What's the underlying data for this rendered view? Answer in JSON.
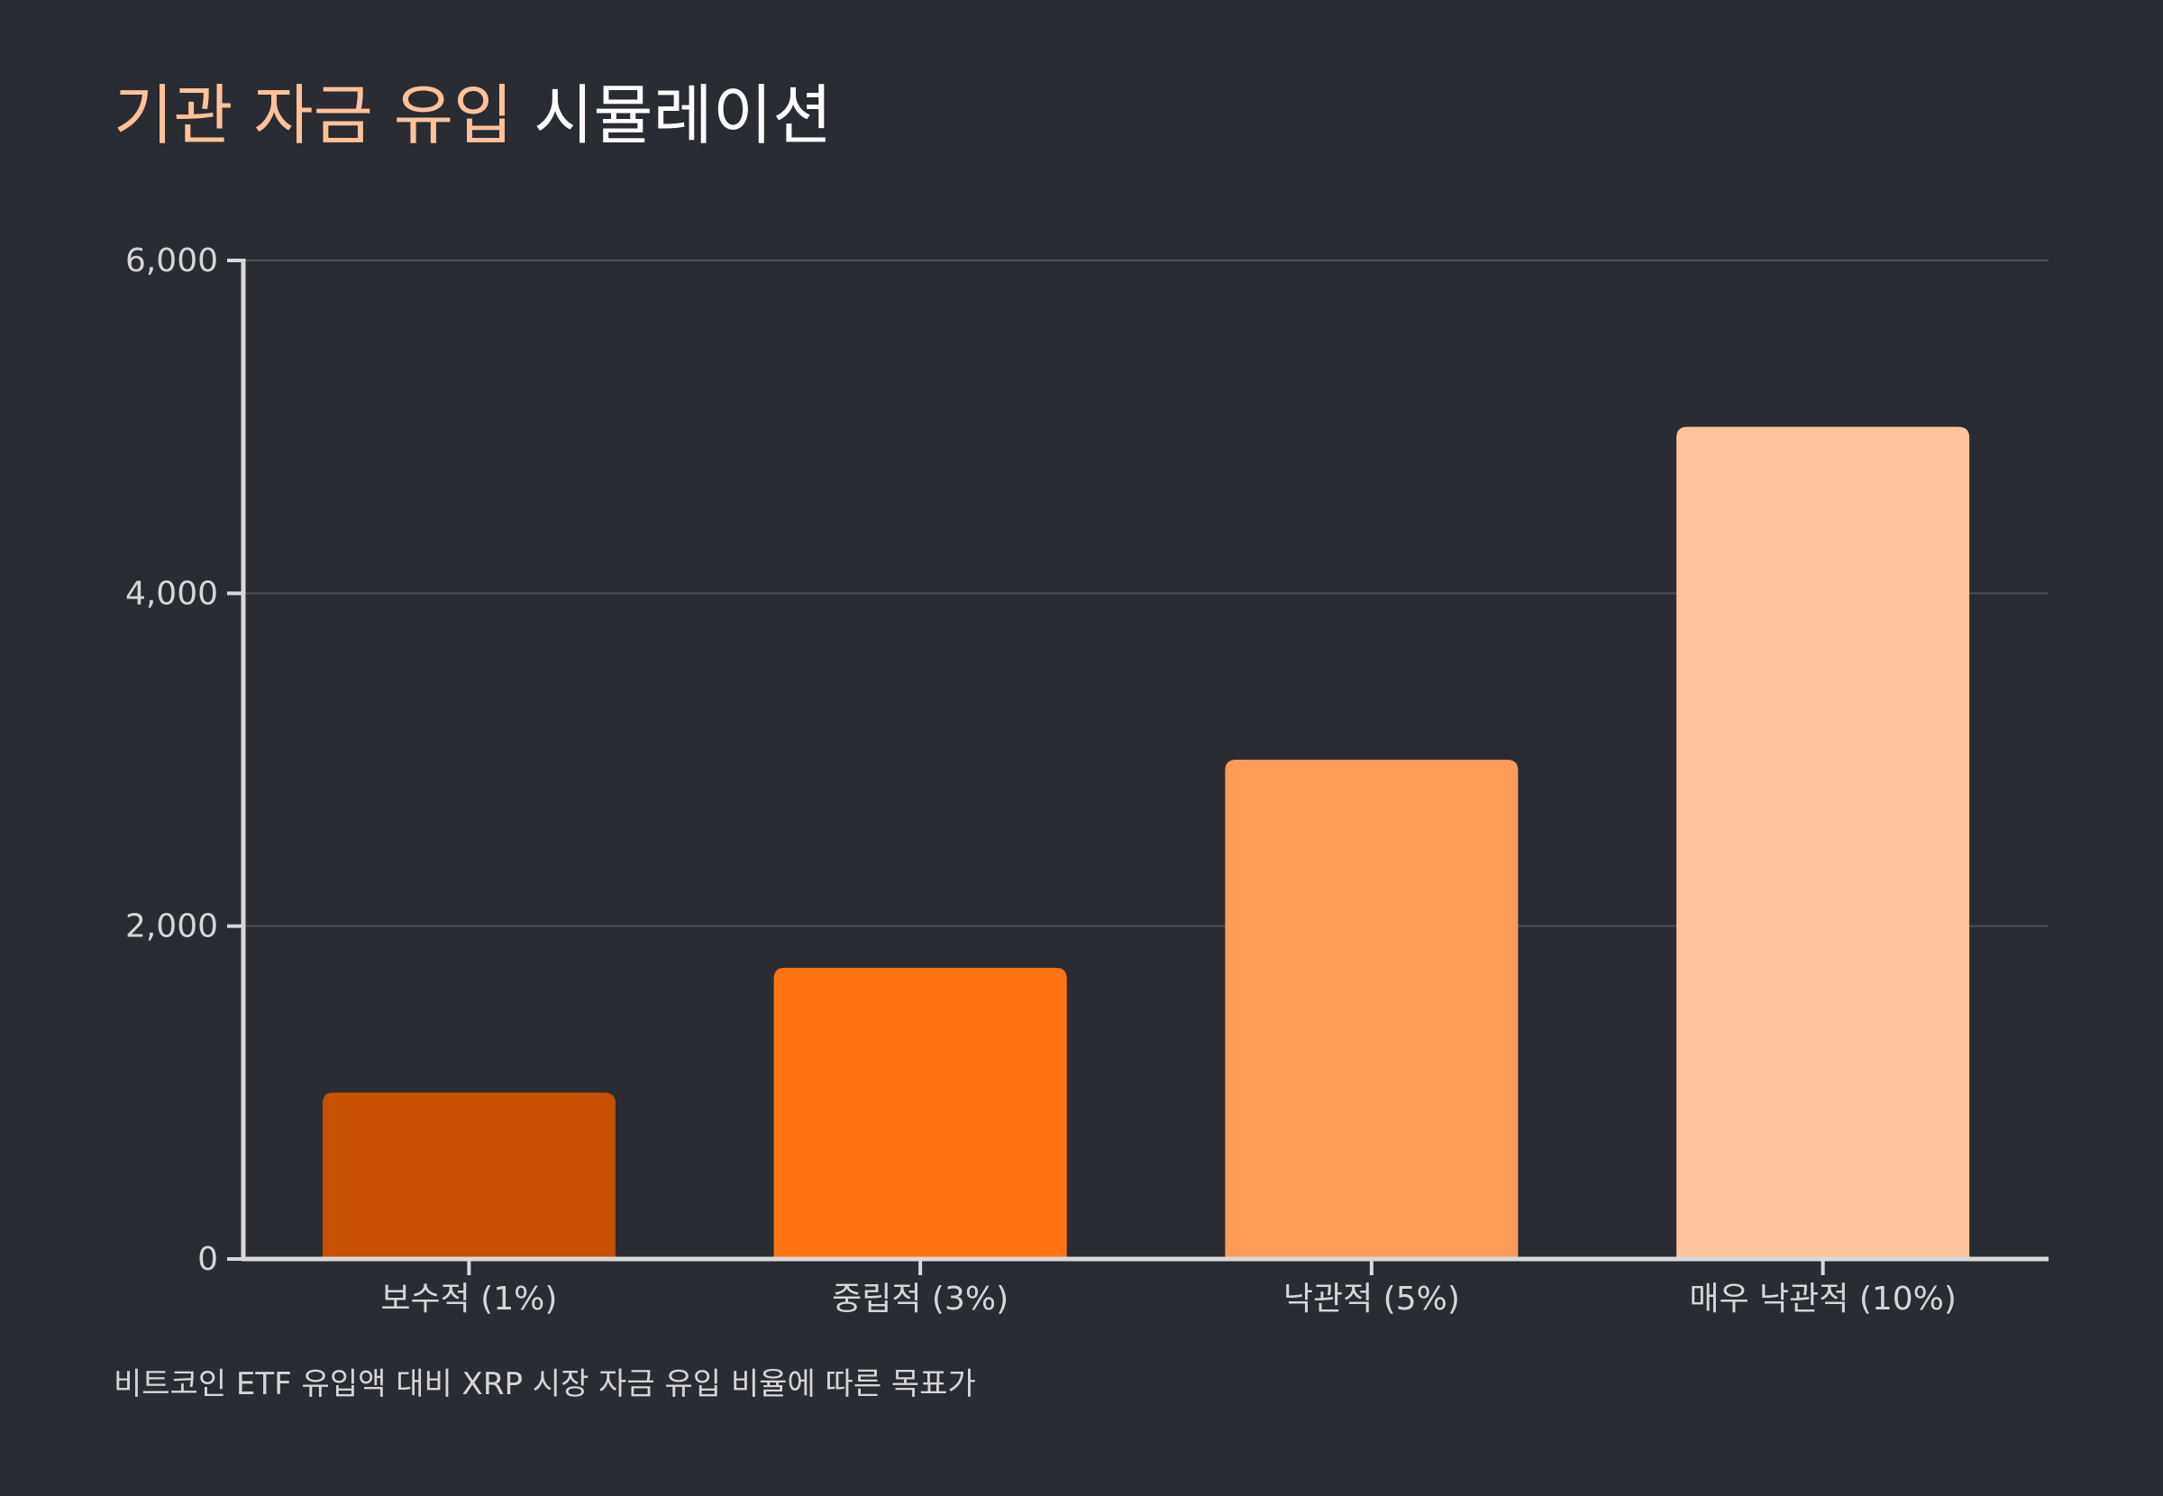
{
  "title": {
    "highlight": "기관 자금 유입",
    "rest": " 시뮬레이션"
  },
  "caption": "비트코인 ETF 유입액 대비 XRP 시장 자금 유입 비율에 따른 목표가",
  "colors": {
    "background": "#2a2c33",
    "title_accent": "#ffc29a",
    "axis": "#d9d9d9",
    "grid": "#4d4f55"
  },
  "chart_data": {
    "type": "bar",
    "categories": [
      "보수적 (1%)",
      "중립적 (3%)",
      "낙관적 (5%)",
      "매우 낙관적 (10%)"
    ],
    "values": [
      1000,
      1750,
      3000,
      5000
    ],
    "bar_colors": [
      "#c85000",
      "#ff7311",
      "#ff9b57",
      "#ffc49e"
    ],
    "ylim": [
      0,
      6000
    ],
    "yticks": [
      "0",
      "2,000",
      "4,000",
      "6,000"
    ],
    "ytick_values": [
      0,
      2000,
      4000,
      6000
    ],
    "grid": true,
    "xlabel": "",
    "ylabel": ""
  }
}
